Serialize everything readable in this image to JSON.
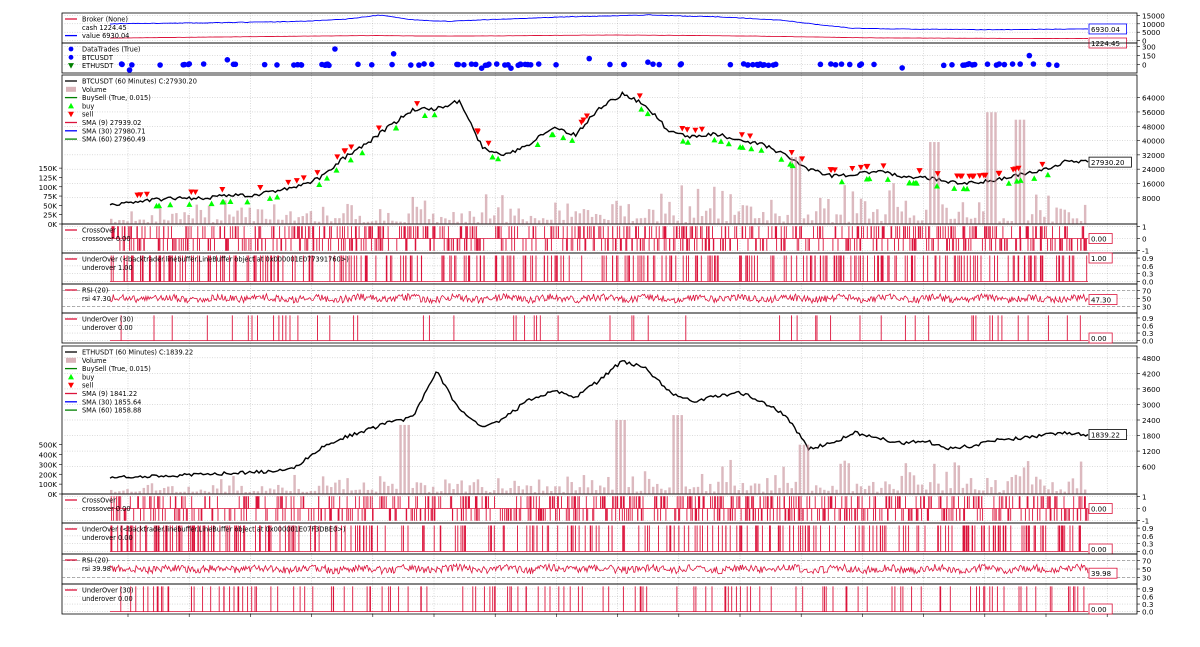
{
  "chart_data": {
    "type": "line",
    "title": "",
    "colors": {
      "crimson": "#dc143c",
      "blue": "#0000ff",
      "green": "#008000",
      "black": "#000000",
      "buy": "#00ff00",
      "sell": "#ff0000",
      "volume": "#c0808a",
      "grid": "#999999"
    },
    "x_ticks": [
      "",
      "",
      "",
      "",
      "",
      "",
      "",
      "",
      "",
      "",
      "",
      "",
      "",
      "",
      "",
      "",
      "",
      "",
      ""
    ],
    "panels": [
      {
        "id": "broker",
        "ylim": [
          0,
          15000
        ],
        "yticks": [
          "0",
          "5000",
          "10000",
          "15000"
        ],
        "legend": [
          {
            "color": "#dc143c",
            "marker": "line",
            "text": "Broker (None)"
          },
          {
            "color": "#dc143c",
            "marker": "none",
            "text": "cash 1224.45"
          },
          {
            "color": "#0000ff",
            "marker": "line",
            "text": "value 6930.04"
          }
        ],
        "last_values": [
          {
            "color": "#0000ff",
            "text": "6930.04",
            "value": 6930.04
          },
          {
            "color": "#dc143c",
            "text": "1224.45",
            "value": 1224.45
          }
        ],
        "series": [
          {
            "name": "value",
            "color": "#0000ff",
            "gen": "walk",
            "seed": 11,
            "anchors": [
              10000,
              10200,
              10400,
              10600,
              10900,
              11200,
              11700,
              12800,
              15200,
              12300,
              11500,
              12300,
              13000,
              13800,
              14400,
              14800,
              15300,
              14600,
              14200,
              13200,
              12000,
              9500,
              7400,
              7000,
              6800,
              6700,
              6500,
              6600,
              6800,
              6930.04
            ],
            "noise": 120
          },
          {
            "name": "cash",
            "color": "#dc143c",
            "gen": "walk",
            "seed": 12,
            "anchors": [
              1500,
              1700,
              1900,
              2100,
              2300,
              2500,
              2700,
              2900,
              3000,
              2800,
              2700,
              2800,
              2900,
              3100,
              3200,
              3300,
              3200,
              3100,
              2900,
              2700,
              2400,
              2100,
              1800,
              1600,
              1500,
              1400,
              1350,
              1300,
              1250,
              1224.45
            ],
            "noise": 40
          }
        ]
      },
      {
        "id": "datatrades",
        "ylim": [
          -100,
          320
        ],
        "yticks": [
          "0",
          "150",
          "300"
        ],
        "legend": [
          {
            "color": "#0000ff",
            "marker": "dot",
            "text": "DataTrades (True)"
          },
          {
            "color": "#0000ff",
            "marker": "dot",
            "text": "BTCUSDT"
          },
          {
            "color": "#008000",
            "marker": "tri-down",
            "text": "ETHUSDT"
          }
        ],
        "last_values": [],
        "series": [
          {
            "name": "BTCUSDT",
            "color": "#0000ff",
            "gen": "dots",
            "seed": 21,
            "count": 95,
            "base": 0,
            "spread": 25,
            "outliers": [
              [
                0.02,
                -90
              ],
              [
                0.12,
                80
              ],
              [
                0.23,
                260
              ],
              [
                0.29,
                180
              ],
              [
                0.38,
                -60
              ],
              [
                0.41,
                -60
              ],
              [
                0.49,
                100
              ],
              [
                0.55,
                40
              ],
              [
                0.81,
                -55
              ],
              [
                0.94,
                150
              ]
            ]
          }
        ]
      },
      {
        "id": "btc",
        "ylim": [
          0,
          70000
        ],
        "yticks": [
          "8000",
          "16000",
          "24000",
          "32000",
          "40000",
          "48000",
          "56000",
          "64000"
        ],
        "vol_ylim": [
          0,
          400000
        ],
        "vol_ticks": [
          "0K",
          "25K",
          "50K",
          "75K",
          "100K",
          "125K",
          "150K"
        ],
        "vol_tick_values": [
          0,
          25000,
          50000,
          75000,
          100000,
          125000,
          150000
        ],
        "legend": [
          {
            "color": "#000000",
            "marker": "line",
            "text": "BTCUSDT (60 Minutes) C:27930.20"
          },
          {
            "color": "#c0808a",
            "marker": "box",
            "text": "Volume"
          },
          {
            "color": "#008000",
            "marker": "line",
            "text": "BuySell (True, 0.015)"
          },
          {
            "color": "#00ff00",
            "marker": "tri-up",
            "text": "buy"
          },
          {
            "color": "#ff0000",
            "marker": "tri-down",
            "text": "sell"
          },
          {
            "color": "#dc143c",
            "marker": "line",
            "text": "SMA (9) 27939.02"
          },
          {
            "color": "#0000ff",
            "marker": "line",
            "text": "SMA (30) 27980.71"
          },
          {
            "color": "#008000",
            "marker": "line",
            "text": "SMA (60) 27960.49"
          }
        ],
        "last_values": [
          {
            "color": "#000000",
            "text": "27930.20",
            "value": 27930.2
          }
        ],
        "series": [
          {
            "name": "BTCUSDT",
            "color": "#000000",
            "gen": "walk",
            "seed": 31,
            "anchors": [
              3800,
              5800,
              7000,
              8000,
              7500,
              9500,
              9200,
              11500,
              14000,
              19000,
              30000,
              38000,
              48000,
              57000,
              58000,
              62000,
              36000,
              32000,
              38000,
              47000,
              43000,
              58000,
              66000,
              60000,
              45000,
              42000,
              44000,
              40000,
              38000,
              32000,
              24000,
              20000,
              21000,
              23000,
              20000,
              19500,
              16800,
              16500,
              17500,
              21000,
              23000,
              28000,
              27930.2
            ],
            "noise": 900
          },
          {
            "name": "volume",
            "color": "#c0808a",
            "gen": "bars",
            "seed": 32,
            "count": 240,
            "min": 5000,
            "max": 120000,
            "spikes": [
              [
                0.7,
                180000
              ],
              [
                0.84,
                220000
              ],
              [
                0.9,
                300000
              ],
              [
                0.93,
                280000
              ]
            ]
          },
          {
            "name": "buy",
            "color": "#00ff00",
            "gen": "markers",
            "seed": 33,
            "count": 60,
            "offset": -3500
          },
          {
            "name": "sell",
            "color": "#ff0000",
            "gen": "markers",
            "seed": 34,
            "count": 60,
            "offset": 3500
          }
        ]
      },
      {
        "id": "btc_crossover",
        "ylim": [
          -1,
          1
        ],
        "yticks": [
          "-1",
          "0",
          "1"
        ],
        "legend": [
          {
            "color": "#dc143c",
            "marker": "line",
            "text": "CrossOver"
          },
          {
            "color": "#dc143c",
            "marker": "none",
            "text": "crossover 0.00"
          }
        ],
        "last_values": [
          {
            "color": "#dc143c",
            "text": "0.00",
            "value": 0
          }
        ],
        "series": [
          {
            "name": "crossover",
            "color": "#dc143c",
            "gen": "spikes",
            "seed": 41,
            "count": 700,
            "span": [
              -1,
              1
            ]
          }
        ]
      },
      {
        "id": "btc_underover",
        "ylim": [
          0,
          1
        ],
        "yticks": [
          "0.0",
          "0.3",
          "0.6",
          "0.9"
        ],
        "legend": [
          {
            "color": "#dc143c",
            "marker": "line",
            "text": "UnderOver (<backtrader.linebuffer.LineBuffer object at 0x000001E077391760>)"
          },
          {
            "color": "#dc143c",
            "marker": "none",
            "text": "underover 1.00"
          }
        ],
        "last_values": [
          {
            "color": "#dc143c",
            "text": "1.00",
            "value": 1
          }
        ],
        "series": [
          {
            "name": "underover",
            "color": "#dc143c",
            "gen": "spikes",
            "seed": 42,
            "count": 650,
            "span": [
              0,
              1
            ]
          }
        ]
      },
      {
        "id": "btc_rsi",
        "ylim": [
          20,
          80
        ],
        "yticks": [
          "30",
          "50",
          "70"
        ],
        "legend": [
          {
            "color": "#dc143c",
            "marker": "line",
            "text": "RSI (20)"
          },
          {
            "color": "#dc143c",
            "marker": "none",
            "text": "rsi 47.30"
          }
        ],
        "last_values": [
          {
            "color": "#dc143c",
            "text": "47.30",
            "value": 47.3
          }
        ],
        "series": [
          {
            "name": "rsi",
            "color": "#dc143c",
            "gen": "osc",
            "seed": 43,
            "center": 50,
            "amp": 9,
            "points": 900,
            "last": 47.3
          }
        ]
      },
      {
        "id": "btc_underover30",
        "ylim": [
          0,
          1
        ],
        "yticks": [
          "0.0",
          "0.3",
          "0.6",
          "0.9"
        ],
        "legend": [
          {
            "color": "#dc143c",
            "marker": "line",
            "text": "UnderOver (30)"
          },
          {
            "color": "#dc143c",
            "marker": "none",
            "text": "underover 0.00"
          }
        ],
        "last_values": [
          {
            "color": "#dc143c",
            "text": "0.00",
            "value": 0
          }
        ],
        "series": [
          {
            "name": "underover30",
            "color": "#dc143c",
            "gen": "spikes",
            "seed": 44,
            "count": 110,
            "span": [
              0,
              1
            ]
          }
        ]
      },
      {
        "id": "eth",
        "ylim": [
          0,
          4800
        ],
        "yticks": [
          "600",
          "1200",
          "1800",
          "2400",
          "3000",
          "3600",
          "4200",
          "4800"
        ],
        "vol_ylim": [
          0,
          1500000
        ],
        "vol_ticks": [
          "0K",
          "100K",
          "200K",
          "300K",
          "400K",
          "500K"
        ],
        "vol_tick_values": [
          0,
          100000,
          200000,
          300000,
          400000,
          500000
        ],
        "legend": [
          {
            "color": "#000000",
            "marker": "line",
            "text": "ETHUSDT (60 Minutes) C:1839.22"
          },
          {
            "color": "#c0808a",
            "marker": "box",
            "text": "Volume"
          },
          {
            "color": "#008000",
            "marker": "line",
            "text": "BuySell (True, 0.015)"
          },
          {
            "color": "#00ff00",
            "marker": "tri-up",
            "text": "buy"
          },
          {
            "color": "#ff0000",
            "marker": "tri-down",
            "text": "sell"
          },
          {
            "color": "#dc143c",
            "marker": "line",
            "text": "SMA (9) 1841.22"
          },
          {
            "color": "#0000ff",
            "marker": "line",
            "text": "SMA (30) 1855.64"
          },
          {
            "color": "#008000",
            "marker": "line",
            "text": "SMA (60) 1858.88"
          }
        ],
        "last_values": [
          {
            "color": "#000000",
            "text": "1839.22",
            "value": 1839.22
          }
        ],
        "series": [
          {
            "name": "ETHUSDT",
            "color": "#000000",
            "gen": "walk",
            "seed": 51,
            "anchors": [
              200,
              220,
              240,
              260,
              300,
              340,
              380,
              420,
              600,
              1300,
              1700,
              2000,
              2300,
              2500,
              4300,
              2800,
              2100,
              2500,
              3200,
              3500,
              3300,
              3900,
              4700,
              4400,
              3500,
              3100,
              3300,
              3500,
              3100,
              2600,
              1300,
              1500,
              1900,
              1700,
              1500,
              1600,
              1300,
              1400,
              1600,
              1700,
              1800,
              1900,
              1839.22
            ],
            "noise": 60
          },
          {
            "name": "volume",
            "color": "#c0808a",
            "gen": "bars",
            "seed": 52,
            "count": 240,
            "min": 20000,
            "max": 350000,
            "spikes": [
              [
                0.3,
                700000
              ],
              [
                0.52,
                750000
              ],
              [
                0.58,
                800000
              ],
              [
                0.71,
                500000
              ]
            ]
          }
        ]
      },
      {
        "id": "eth_crossover",
        "ylim": [
          -1,
          1
        ],
        "yticks": [
          "-1",
          "0",
          "1"
        ],
        "legend": [
          {
            "color": "#dc143c",
            "marker": "line",
            "text": "CrossOver"
          },
          {
            "color": "#dc143c",
            "marker": "none",
            "text": "crossover 0.00"
          }
        ],
        "last_values": [
          {
            "color": "#dc143c",
            "text": "0.00",
            "value": 0
          }
        ],
        "series": [
          {
            "name": "crossover",
            "color": "#dc143c",
            "gen": "spikes",
            "seed": 61,
            "count": 700,
            "span": [
              -1,
              1
            ]
          }
        ]
      },
      {
        "id": "eth_underover",
        "ylim": [
          0,
          1
        ],
        "yticks": [
          "0.0",
          "0.3",
          "0.6",
          "0.9"
        ],
        "legend": [
          {
            "color": "#dc143c",
            "marker": "line",
            "text": "UnderOver (<backtrader.linebuffer.LineBuffer object at 0x000001E07F3DBE0>)"
          },
          {
            "color": "#dc143c",
            "marker": "none",
            "text": "underover 0.00"
          }
        ],
        "last_values": [
          {
            "color": "#dc143c",
            "text": "0.00",
            "value": 0
          }
        ],
        "series": [
          {
            "name": "underover",
            "color": "#dc143c",
            "gen": "spikes",
            "seed": 62,
            "count": 650,
            "span": [
              0,
              1
            ]
          }
        ]
      },
      {
        "id": "eth_rsi",
        "ylim": [
          20,
          80
        ],
        "yticks": [
          "30",
          "50",
          "70"
        ],
        "legend": [
          {
            "color": "#dc143c",
            "marker": "line",
            "text": "RSI (20)"
          },
          {
            "color": "#dc143c",
            "marker": "none",
            "text": "rsi 39.98"
          }
        ],
        "last_values": [
          {
            "color": "#dc143c",
            "text": "39.98",
            "value": 39.98
          }
        ],
        "series": [
          {
            "name": "rsi",
            "color": "#dc143c",
            "gen": "osc",
            "seed": 63,
            "center": 50,
            "amp": 9,
            "points": 900,
            "last": 39.98
          }
        ]
      },
      {
        "id": "eth_underover30",
        "ylim": [
          0,
          1
        ],
        "yticks": [
          "0.0",
          "0.3",
          "0.6",
          "0.9"
        ],
        "legend": [
          {
            "color": "#dc143c",
            "marker": "line",
            "text": "UnderOver (30)"
          },
          {
            "color": "#dc143c",
            "marker": "none",
            "text": "underover 0.00"
          }
        ],
        "last_values": [
          {
            "color": "#dc143c",
            "text": "0.00",
            "value": 0
          }
        ],
        "series": [
          {
            "name": "underover30",
            "color": "#dc143c",
            "gen": "spikes",
            "seed": 64,
            "count": 260,
            "span": [
              0,
              1
            ]
          }
        ]
      }
    ]
  }
}
